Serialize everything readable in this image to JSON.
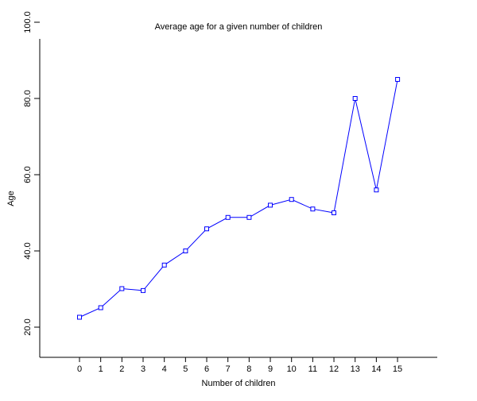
{
  "chart_data": {
    "type": "line",
    "title": "Average age for a given number of children",
    "xlabel": "Number of children",
    "ylabel": "Age",
    "x": [
      0,
      1,
      2,
      3,
      4,
      5,
      6,
      7,
      8,
      9,
      10,
      11,
      12,
      13,
      14,
      15
    ],
    "x_tick_labels": [
      "0",
      "1",
      "2",
      "3",
      "4",
      "5",
      "6",
      "7",
      "8",
      "9",
      "10",
      "11",
      "12",
      "13",
      "14",
      "15"
    ],
    "y_tick_labels": [
      "20.0",
      "40.0",
      "60.0",
      "80.0",
      "100.0"
    ],
    "y_ticks": [
      20,
      40,
      60,
      80,
      100
    ],
    "ylim": [
      12,
      100
    ],
    "grid": false,
    "series": [
      {
        "color": "#0000ff",
        "marker": "square",
        "values": [
          22.6,
          25.1,
          30.1,
          29.6,
          36.3,
          40.0,
          45.8,
          48.8,
          48.8,
          52.0,
          53.5,
          51.0,
          50.0,
          80.0,
          56.0,
          85.0
        ]
      }
    ]
  }
}
